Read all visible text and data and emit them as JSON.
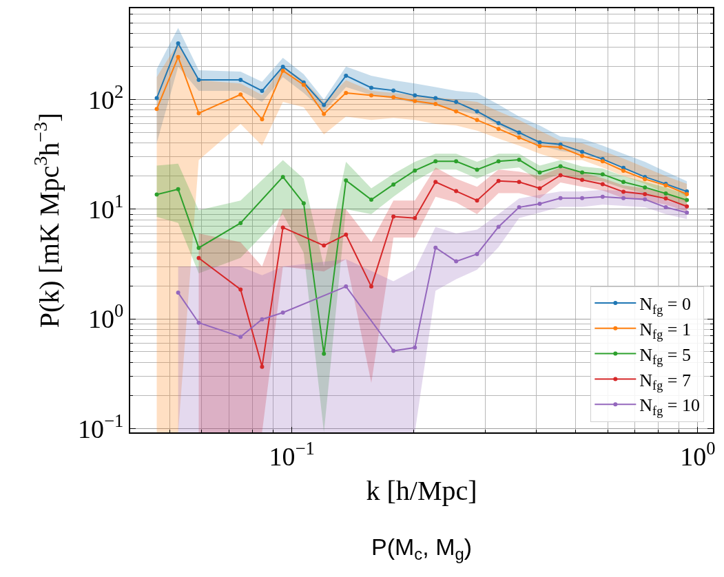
{
  "chart_data": {
    "type": "line",
    "xlabel": "k [h/Mpc]",
    "ylabel": "P(k) [mK Mpc$^{3}$h$^{−3}$]",
    "annotations": [
      "P(M$_{c}$, M$_{g}$)"
    ],
    "log": "xy",
    "grid": true,
    "legend": "bottom right",
    "marker": "circle",
    "line_style": "solid",
    "xlim": [
      0.04,
      1.09
    ],
    "ylim": [
      0.092,
      680
    ],
    "xticks": [
      {
        "value": 0.1,
        "label": "10$^{−1}$"
      },
      {
        "value": 1,
        "label": "10$^{0}$"
      }
    ],
    "yticks": [
      {
        "value": 0.1,
        "label": "10$^{−1}$"
      },
      {
        "value": 1,
        "label": "10$^{0}$"
      },
      {
        "value": 10,
        "label": "10$^{1}$"
      },
      {
        "value": 100,
        "label": "10$^{2}$"
      }
    ],
    "series": [
      {
        "name": "N$_{fg}$ = 0",
        "color": "#1f77b4",
        "x": [
          0.0465,
          0.0525,
          0.059,
          0.0748,
          0.0845,
          0.0951,
          0.107,
          0.12,
          0.136,
          0.157,
          0.178,
          0.201,
          0.226,
          0.254,
          0.286,
          0.323,
          0.363,
          0.408,
          0.459,
          0.519,
          0.583,
          0.656,
          0.741,
          0.834,
          0.94
        ],
        "values": [
          103,
          325,
          151,
          151,
          120,
          199,
          143,
          89,
          165,
          128,
          121,
          109,
          103,
          95,
          78,
          61,
          50,
          40.7,
          39,
          33.4,
          28.6,
          23.8,
          19.7,
          17,
          14.5
        ],
        "lower": [
          40,
          200,
          120,
          120,
          95,
          160,
          115,
          78,
          130,
          110,
          102,
          93,
          88,
          80,
          73,
          58,
          46,
          38,
          34,
          32,
          28,
          24,
          20,
          17,
          13
        ],
        "upper": [
          190,
          450,
          185,
          180,
          145,
          240,
          170,
          100,
          200,
          165,
          150,
          140,
          130,
          120,
          115,
          90,
          70,
          58,
          46,
          44,
          38,
          32,
          27,
          22,
          18
        ]
      },
      {
        "name": "N$_{fg}$ = 1",
        "color": "#ff7f0e",
        "x": [
          0.0465,
          0.0525,
          0.059,
          0.0748,
          0.0845,
          0.0951,
          0.107,
          0.12,
          0.136,
          0.157,
          0.178,
          0.201,
          0.226,
          0.254,
          0.286,
          0.323,
          0.363,
          0.408,
          0.459,
          0.519,
          0.583,
          0.656,
          0.741,
          0.834,
          0.94
        ],
        "values": [
          82,
          244,
          75,
          111,
          66,
          183,
          136,
          74,
          115,
          109,
          105,
          97,
          91,
          78,
          65,
          54,
          45,
          37.6,
          36.6,
          30.6,
          27.3,
          22.4,
          18.8,
          16.5,
          13.7
        ],
        "lower": [
          0.092,
          0.092,
          28,
          60,
          38,
          95,
          85,
          48,
          70,
          65,
          68,
          65,
          60,
          58,
          52,
          44,
          38,
          32,
          28,
          28,
          24,
          20,
          17,
          14,
          11.5
        ],
        "upper": [
          160,
          330,
          150,
          140,
          110,
          200,
          150,
          95,
          150,
          120,
          115,
          110,
          105,
          100,
          95,
          78,
          65,
          52,
          42,
          40,
          34,
          29,
          24,
          20,
          17
        ]
      },
      {
        "name": "N$_{fg}$ = 5",
        "color": "#2ca02c",
        "x": [
          0.0465,
          0.0525,
          0.059,
          0.0748,
          0.0951,
          0.107,
          0.12,
          0.136,
          0.157,
          0.178,
          0.201,
          0.226,
          0.254,
          0.286,
          0.323,
          0.363,
          0.408,
          0.459,
          0.519,
          0.583,
          0.656,
          0.741,
          0.834,
          0.94
        ],
        "values": [
          13.6,
          15.2,
          4.44,
          7.47,
          19.7,
          11.3,
          0.48,
          18.3,
          12.2,
          16.8,
          22.5,
          27.3,
          27.3,
          22.9,
          27.3,
          28.2,
          21.6,
          24.6,
          21.6,
          20.8,
          17.7,
          15.8,
          13.9,
          12.1
        ],
        "lower": [
          8.5,
          7.5,
          2.6,
          3.6,
          9,
          4,
          0.092,
          10,
          9,
          13,
          18,
          23,
          23,
          19,
          23,
          24,
          18,
          21,
          18.5,
          18,
          15.5,
          14,
          12.2,
          10.8
        ],
        "upper": [
          25,
          26,
          9.8,
          12,
          28,
          19,
          3,
          27,
          15.5,
          21,
          27,
          32,
          32,
          27,
          32,
          32,
          25,
          28,
          24.5,
          23.5,
          20,
          17.8,
          15.8,
          13.6
        ]
      },
      {
        "name": "N$_{fg}$ = 7",
        "color": "#d62728",
        "x": [
          0.059,
          0.0748,
          0.0845,
          0.0951,
          0.12,
          0.136,
          0.157,
          0.178,
          0.201,
          0.226,
          0.254,
          0.286,
          0.323,
          0.363,
          0.408,
          0.459,
          0.519,
          0.583,
          0.656,
          0.741,
          0.834,
          0.94
        ],
        "values": [
          3.58,
          1.85,
          0.365,
          6.8,
          4.66,
          5.85,
          1.97,
          8.57,
          8.3,
          17.7,
          14.6,
          12.0,
          18.1,
          17.7,
          15.5,
          20.4,
          18.5,
          16.9,
          14.4,
          13.7,
          12.5,
          10.6
        ],
        "lower": [
          0.092,
          0.092,
          0.092,
          3,
          2.7,
          3.5,
          0.26,
          5.5,
          5.5,
          13,
          11.5,
          9,
          14,
          14,
          12.5,
          17.5,
          16,
          14.8,
          12.6,
          12,
          11,
          9.5
        ],
        "upper": [
          6,
          5,
          3,
          10,
          10,
          10,
          5,
          12,
          12,
          24,
          19,
          16,
          23,
          22,
          20,
          24,
          21.5,
          19.2,
          16.5,
          15.5,
          14,
          11.8
        ]
      },
      {
        "name": "N$_{fg}$ = 10",
        "color": "#9467bd",
        "x": [
          0.0525,
          0.059,
          0.0748,
          0.0845,
          0.0951,
          0.136,
          0.178,
          0.201,
          0.226,
          0.254,
          0.286,
          0.323,
          0.363,
          0.408,
          0.459,
          0.519,
          0.583,
          0.656,
          0.741,
          0.834,
          0.94
        ],
        "values": [
          1.73,
          0.92,
          0.685,
          0.99,
          1.14,
          1.97,
          0.51,
          0.546,
          4.45,
          3.34,
          3.9,
          6.9,
          10.4,
          11.2,
          12.6,
          12.6,
          13,
          12.6,
          12.3,
          10.4,
          9.3
        ],
        "lower": [
          0.092,
          0.092,
          0.092,
          0.092,
          0.092,
          0.092,
          0.092,
          0.092,
          1.8,
          2.3,
          2.8,
          4.5,
          8.3,
          9.3,
          10.5,
          10.5,
          11,
          10.7,
          10.4,
          9,
          8.1
        ],
        "upper": [
          3,
          3,
          3,
          2.5,
          3,
          3.5,
          2.2,
          2.8,
          6.9,
          6,
          6.5,
          9,
          12.5,
          13.5,
          14.5,
          14.5,
          15,
          14.7,
          14.3,
          12,
          10.7
        ]
      }
    ]
  }
}
